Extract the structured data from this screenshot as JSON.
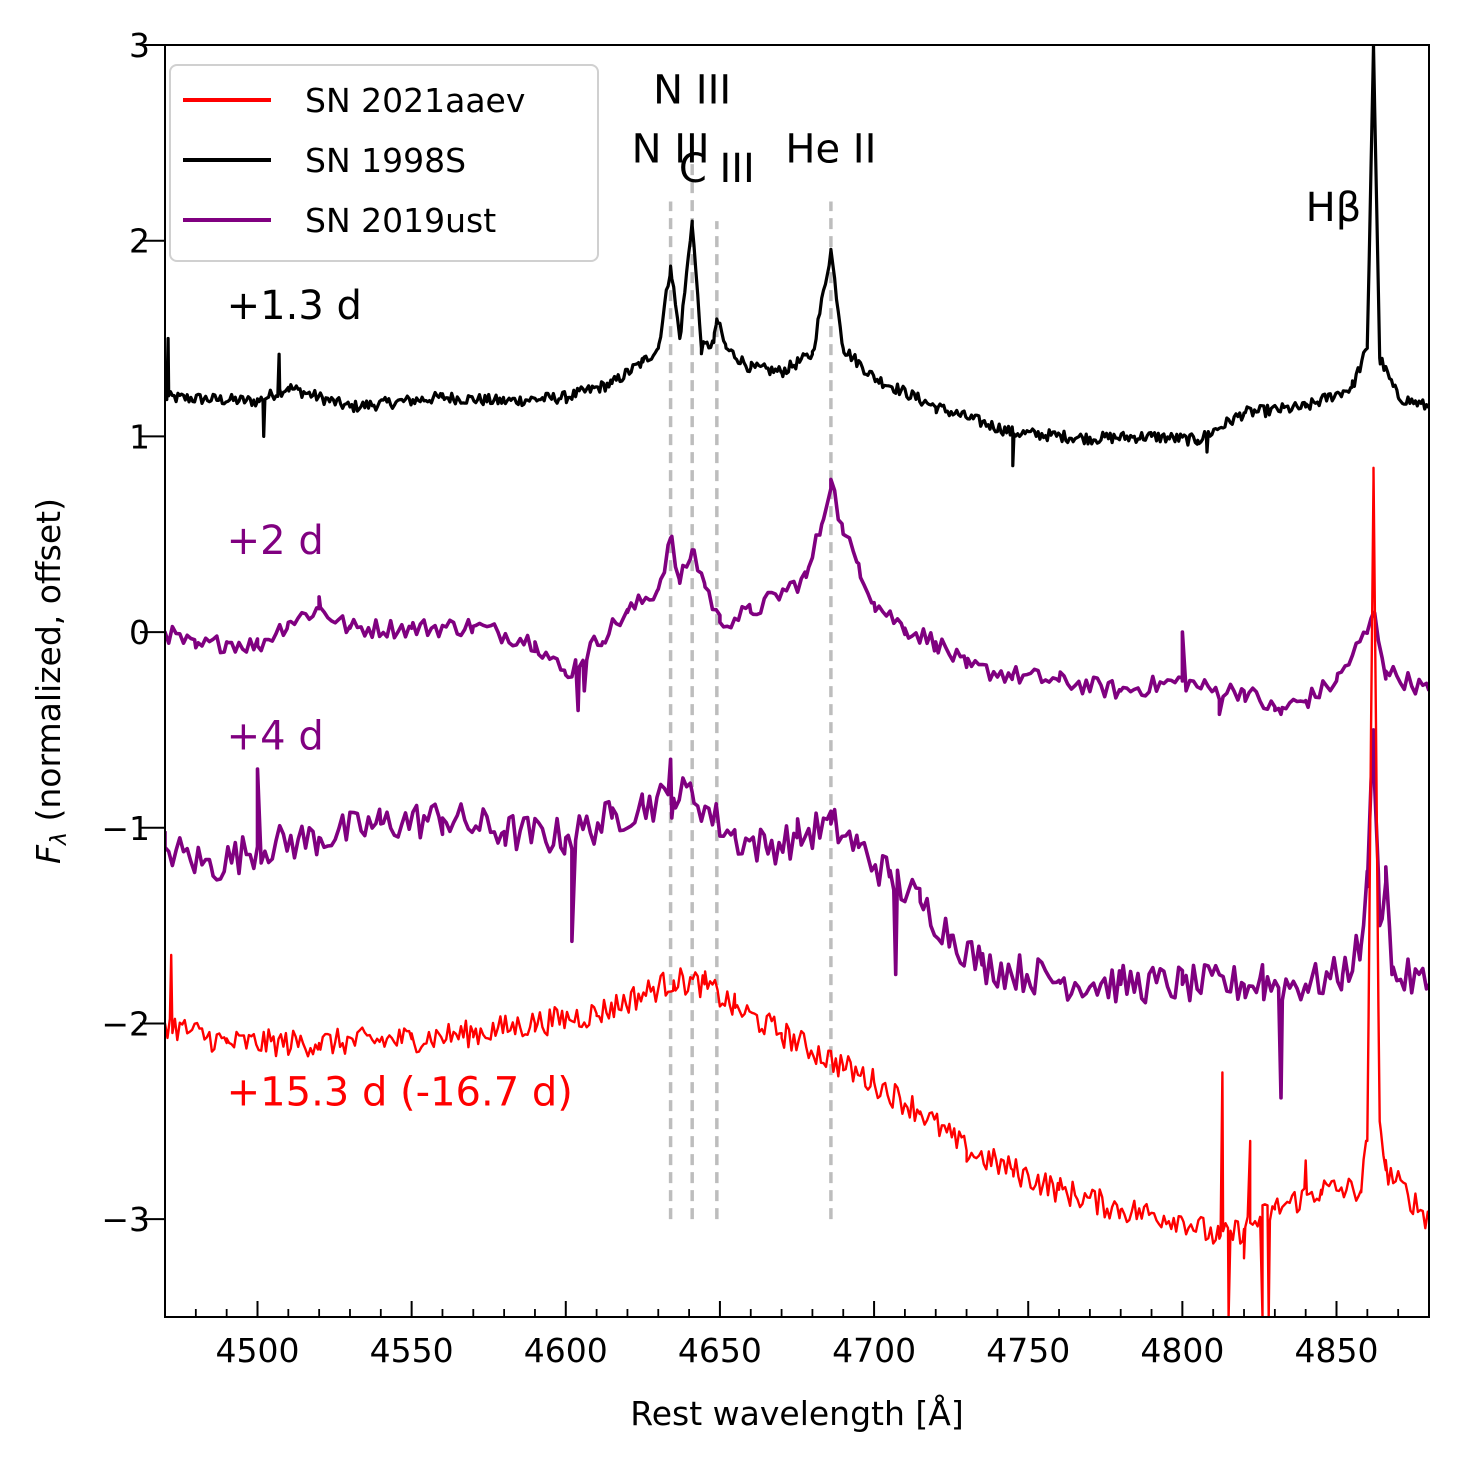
{
  "chart_data": {
    "type": "line",
    "title": "",
    "xlabel": "Rest wavelength [Å]",
    "ylabel_main": "F",
    "ylabel_sub": "λ",
    "ylabel_rest": " (normalized, offset)",
    "xlim": [
      4470,
      4880
    ],
    "ylim": [
      -3.5,
      3
    ],
    "x_ticks": [
      {
        "value": 4500,
        "label": "4500"
      },
      {
        "value": 4550,
        "label": "4550"
      },
      {
        "value": 4600,
        "label": "4600"
      },
      {
        "value": 4650,
        "label": "4650"
      },
      {
        "value": 4700,
        "label": "4700"
      },
      {
        "value": 4750,
        "label": "4750"
      },
      {
        "value": 4800,
        "label": "4800"
      },
      {
        "value": 4850,
        "label": "4850"
      }
    ],
    "y_ticks": [
      {
        "value": 3,
        "label": "3"
      },
      {
        "value": 2,
        "label": "2"
      },
      {
        "value": 1,
        "label": "1"
      },
      {
        "value": 0,
        "label": "0"
      },
      {
        "value": -1,
        "label": "−1"
      },
      {
        "value": -2,
        "label": "−2"
      },
      {
        "value": -3,
        "label": "−3"
      }
    ],
    "legend": {
      "placement": "upper-left",
      "entries": [
        {
          "label": "SN 2021aaev",
          "color": "#ff0000"
        },
        {
          "label": "SN 1998S",
          "color": "#000000"
        },
        {
          "label": "SN 2019ust",
          "color": "#800080"
        }
      ]
    },
    "line_markers": [
      {
        "label": "N III",
        "wavelength": 4634,
        "label_y": 2.4
      },
      {
        "label": "N III",
        "wavelength": 4641,
        "label_y": 2.7
      },
      {
        "label": "C III",
        "wavelength": 4649,
        "label_y": 2.3
      },
      {
        "label": "He II",
        "wavelength": 4686,
        "label_y": 2.4
      }
    ],
    "marker_bottom_y": -3.0,
    "marker_top_y": [
      2.2,
      2.5,
      2.1,
      2.2
    ],
    "extra_labels": [
      {
        "text": "Hβ",
        "x": 4840,
        "y": 2.1,
        "color": "#000000"
      }
    ],
    "epoch_labels": [
      {
        "text": "+1.3 d",
        "x": 4490,
        "y": 1.6,
        "color": "#000000"
      },
      {
        "text": "+2 d",
        "x": 4490,
        "y": 0.4,
        "color": "#800080"
      },
      {
        "text": "+4 d",
        "x": 4490,
        "y": -0.6,
        "color": "#800080"
      },
      {
        "text": "+15.3 d (-16.7 d)",
        "x": 4490,
        "y": -2.42,
        "color": "#ff0000"
      }
    ],
    "series": [
      {
        "name": "SN 1998S",
        "epoch": "+1.3 d",
        "color": "#000000",
        "width": 3.2,
        "noise": 0.03,
        "step": 0.6,
        "points": [
          [
            4470,
            1.2
          ],
          [
            4500,
            1.18
          ],
          [
            4510,
            1.25
          ],
          [
            4530,
            1.15
          ],
          [
            4560,
            1.2
          ],
          [
            4580,
            1.18
          ],
          [
            4600,
            1.2
          ],
          [
            4615,
            1.27
          ],
          [
            4625,
            1.38
          ],
          [
            4630,
            1.45
          ],
          [
            4634,
            1.87
          ],
          [
            4637,
            1.5
          ],
          [
            4641,
            2.1
          ],
          [
            4644,
            1.45
          ],
          [
            4648,
            1.48
          ],
          [
            4649,
            1.6
          ],
          [
            4652,
            1.45
          ],
          [
            4660,
            1.35
          ],
          [
            4670,
            1.33
          ],
          [
            4680,
            1.42
          ],
          [
            4686,
            1.95
          ],
          [
            4690,
            1.45
          ],
          [
            4700,
            1.3
          ],
          [
            4720,
            1.15
          ],
          [
            4745,
            1.02
          ],
          [
            4770,
            0.99
          ],
          [
            4790,
            1.0
          ],
          [
            4805,
            0.98
          ],
          [
            4820,
            1.12
          ],
          [
            4840,
            1.15
          ],
          [
            4855,
            1.25
          ],
          [
            4860,
            1.45
          ],
          [
            4862,
            3.0
          ],
          [
            4864,
            1.4
          ],
          [
            4870,
            1.2
          ],
          [
            4880,
            1.15
          ]
        ]
      },
      {
        "name": "SN 2019ust",
        "epoch": "+2 d",
        "color": "#800080",
        "width": 3.6,
        "noise": 0.05,
        "step": 1.2,
        "points": [
          [
            4470,
            0.0
          ],
          [
            4480,
            -0.08
          ],
          [
            4490,
            -0.05
          ],
          [
            4500,
            -0.07
          ],
          [
            4510,
            0.05
          ],
          [
            4520,
            0.12
          ],
          [
            4530,
            0.02
          ],
          [
            4550,
            0.02
          ],
          [
            4570,
            0.03
          ],
          [
            4590,
            -0.05
          ],
          [
            4600,
            -0.22
          ],
          [
            4610,
            -0.05
          ],
          [
            4620,
            0.1
          ],
          [
            4630,
            0.22
          ],
          [
            4634,
            0.48
          ],
          [
            4637,
            0.25
          ],
          [
            4641,
            0.42
          ],
          [
            4645,
            0.25
          ],
          [
            4650,
            0.05
          ],
          [
            4660,
            0.1
          ],
          [
            4670,
            0.2
          ],
          [
            4678,
            0.28
          ],
          [
            4683,
            0.55
          ],
          [
            4686,
            0.78
          ],
          [
            4690,
            0.5
          ],
          [
            4695,
            0.35
          ],
          [
            4700,
            0.15
          ],
          [
            4710,
            0.02
          ],
          [
            4720,
            -0.05
          ],
          [
            4730,
            -0.18
          ],
          [
            4745,
            -0.22
          ],
          [
            4760,
            -0.25
          ],
          [
            4780,
            -0.3
          ],
          [
            4800,
            -0.25
          ],
          [
            4810,
            -0.3
          ],
          [
            4820,
            -0.3
          ],
          [
            4830,
            -0.4
          ],
          [
            4840,
            -0.35
          ],
          [
            4850,
            -0.25
          ],
          [
            4860,
            0.0
          ],
          [
            4862,
            0.1
          ],
          [
            4866,
            -0.2
          ],
          [
            4880,
            -0.3
          ]
        ]
      },
      {
        "name": "SN 2019ust",
        "epoch": "+4 d",
        "color": "#800080",
        "width": 3.6,
        "noise": 0.1,
        "step": 1.2,
        "points": [
          [
            4470,
            -1.1
          ],
          [
            4485,
            -1.2
          ],
          [
            4500,
            -1.1
          ],
          [
            4520,
            -1.05
          ],
          [
            4540,
            -0.98
          ],
          [
            4560,
            -0.95
          ],
          [
            4580,
            -1.02
          ],
          [
            4600,
            -1.05
          ],
          [
            4615,
            -0.95
          ],
          [
            4625,
            -0.88
          ],
          [
            4635,
            -0.85
          ],
          [
            4641,
            -0.82
          ],
          [
            4648,
            -0.95
          ],
          [
            4655,
            -1.05
          ],
          [
            4665,
            -1.1
          ],
          [
            4675,
            -1.05
          ],
          [
            4686,
            -0.98
          ],
          [
            4695,
            -1.1
          ],
          [
            4705,
            -1.25
          ],
          [
            4715,
            -1.38
          ],
          [
            4725,
            -1.55
          ],
          [
            4735,
            -1.7
          ],
          [
            4760,
            -1.78
          ],
          [
            4780,
            -1.8
          ],
          [
            4800,
            -1.8
          ],
          [
            4820,
            -1.8
          ],
          [
            4840,
            -1.8
          ],
          [
            4852,
            -1.75
          ],
          [
            4858,
            -1.6
          ],
          [
            4860,
            -1.3
          ],
          [
            4862,
            -0.5
          ],
          [
            4864,
            -1.5
          ],
          [
            4866,
            -1.2
          ],
          [
            4868,
            -1.75
          ],
          [
            4880,
            -1.8
          ]
        ]
      },
      {
        "name": "SN 2021aaev",
        "epoch": "+15.3 d (-16.7 d)",
        "color": "#ff0000",
        "width": 2.4,
        "noise": 0.07,
        "step": 0.8,
        "points": [
          [
            4470,
            -2.0
          ],
          [
            4490,
            -2.1
          ],
          [
            4520,
            -2.1
          ],
          [
            4550,
            -2.08
          ],
          [
            4570,
            -2.05
          ],
          [
            4590,
            -2.0
          ],
          [
            4610,
            -1.95
          ],
          [
            4625,
            -1.85
          ],
          [
            4635,
            -1.78
          ],
          [
            4645,
            -1.8
          ],
          [
            4655,
            -1.92
          ],
          [
            4670,
            -2.05
          ],
          [
            4690,
            -2.22
          ],
          [
            4700,
            -2.3
          ],
          [
            4715,
            -2.45
          ],
          [
            4730,
            -2.65
          ],
          [
            4745,
            -2.75
          ],
          [
            4760,
            -2.85
          ],
          [
            4780,
            -2.95
          ],
          [
            4800,
            -3.0
          ],
          [
            4812,
            -3.1
          ],
          [
            4820,
            -3.05
          ],
          [
            4830,
            -2.95
          ],
          [
            4845,
            -2.85
          ],
          [
            4858,
            -2.85
          ],
          [
            4860,
            -2.6
          ],
          [
            4862,
            0.78
          ],
          [
            4864,
            -2.5
          ],
          [
            4866,
            -2.75
          ],
          [
            4880,
            -3.0
          ]
        ]
      }
    ],
    "spikes": [
      {
        "series": 0,
        "x": 4471,
        "y": 1.5
      },
      {
        "series": 0,
        "x": 4502,
        "y": 1.0
      },
      {
        "series": 0,
        "x": 4507,
        "y": 1.42
      },
      {
        "series": 0,
        "x": 4745,
        "y": 0.85
      },
      {
        "series": 0,
        "x": 4808,
        "y": 0.92
      },
      {
        "series": 1,
        "x": 4520,
        "y": 0.18
      },
      {
        "series": 1,
        "x": 4604,
        "y": -0.4
      },
      {
        "series": 1,
        "x": 4606,
        "y": -0.3
      },
      {
        "series": 1,
        "x": 4612,
        "y": -0.05
      },
      {
        "series": 1,
        "x": 4800,
        "y": 0.0
      },
      {
        "series": 1,
        "x": 4812,
        "y": -0.42
      },
      {
        "series": 1,
        "x": 4832,
        "y": -0.42
      },
      {
        "series": 2,
        "x": 4500,
        "y": -0.7
      },
      {
        "series": 2,
        "x": 4602,
        "y": -1.58
      },
      {
        "series": 2,
        "x": 4634,
        "y": -0.65
      },
      {
        "series": 2,
        "x": 4707,
        "y": -1.75
      },
      {
        "series": 2,
        "x": 4826,
        "y": -1.7
      },
      {
        "series": 2,
        "x": 4832,
        "y": -2.38
      },
      {
        "series": 3,
        "x": 4472,
        "y": -1.65
      },
      {
        "series": 3,
        "x": 4813,
        "y": -2.25
      },
      {
        "series": 3,
        "x": 4815,
        "y": -3.5
      },
      {
        "series": 3,
        "x": 4820,
        "y": -3.2
      },
      {
        "series": 3,
        "x": 4822,
        "y": -2.6
      },
      {
        "series": 3,
        "x": 4826,
        "y": -3.5
      },
      {
        "series": 3,
        "x": 4828,
        "y": -3.5
      },
      {
        "series": 3,
        "x": 4840,
        "y": -2.7
      }
    ]
  }
}
